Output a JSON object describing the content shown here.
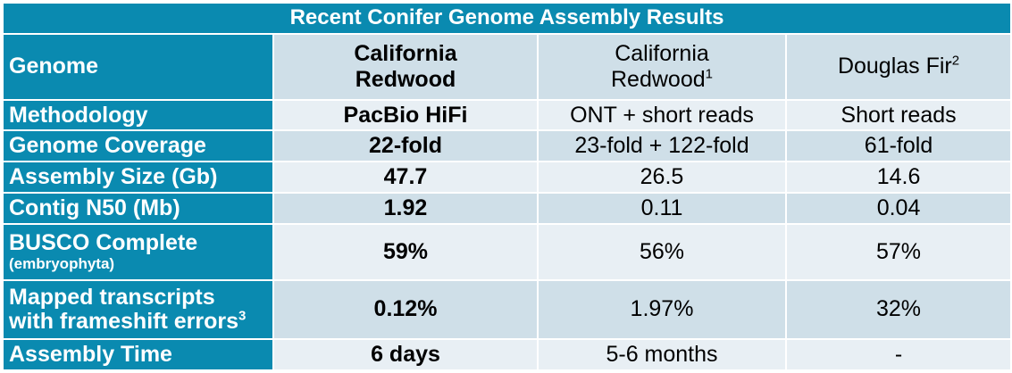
{
  "table": {
    "title": "Recent Conifer Genome Assembly Results",
    "header": {
      "label": "Genome",
      "col1_line1": "California",
      "col1_line2": "Redwood",
      "col2_line1": "California",
      "col2_line2": "Redwood",
      "col2_sup": "1",
      "col3": "Douglas Fir",
      "col3_sup": "2"
    },
    "rows": [
      {
        "label": "Methodology",
        "c1": "PacBio HiFi",
        "c2": "ONT + short reads",
        "c3": "Short reads"
      },
      {
        "label": "Genome Coverage",
        "c1": "22-fold",
        "c2": "23-fold + 122-fold",
        "c3": "61-fold"
      },
      {
        "label": "Assembly Size (Gb)",
        "c1": "47.7",
        "c2": "26.5",
        "c3": "14.6"
      },
      {
        "label": "Contig N50 (Mb)",
        "c1": "1.92",
        "c2": "0.11",
        "c3": "0.04"
      },
      {
        "label": "BUSCO Complete",
        "sublabel": "(embryophyta)",
        "c1": "59%",
        "c2": "56%",
        "c3": "57%"
      },
      {
        "label_line1": "Mapped transcripts",
        "label_line2": "with frameshift errors",
        "label_sup": "3",
        "c1": "0.12%",
        "c2": "1.97%",
        "c3": "32%"
      },
      {
        "label": "Assembly Time",
        "c1": "6 days",
        "c2": "5-6 months",
        "c3": "-"
      }
    ],
    "colors": {
      "header_bg": "#0a8ab0",
      "row_dark": "#cfdfe8",
      "row_light": "#e8eff4"
    }
  }
}
